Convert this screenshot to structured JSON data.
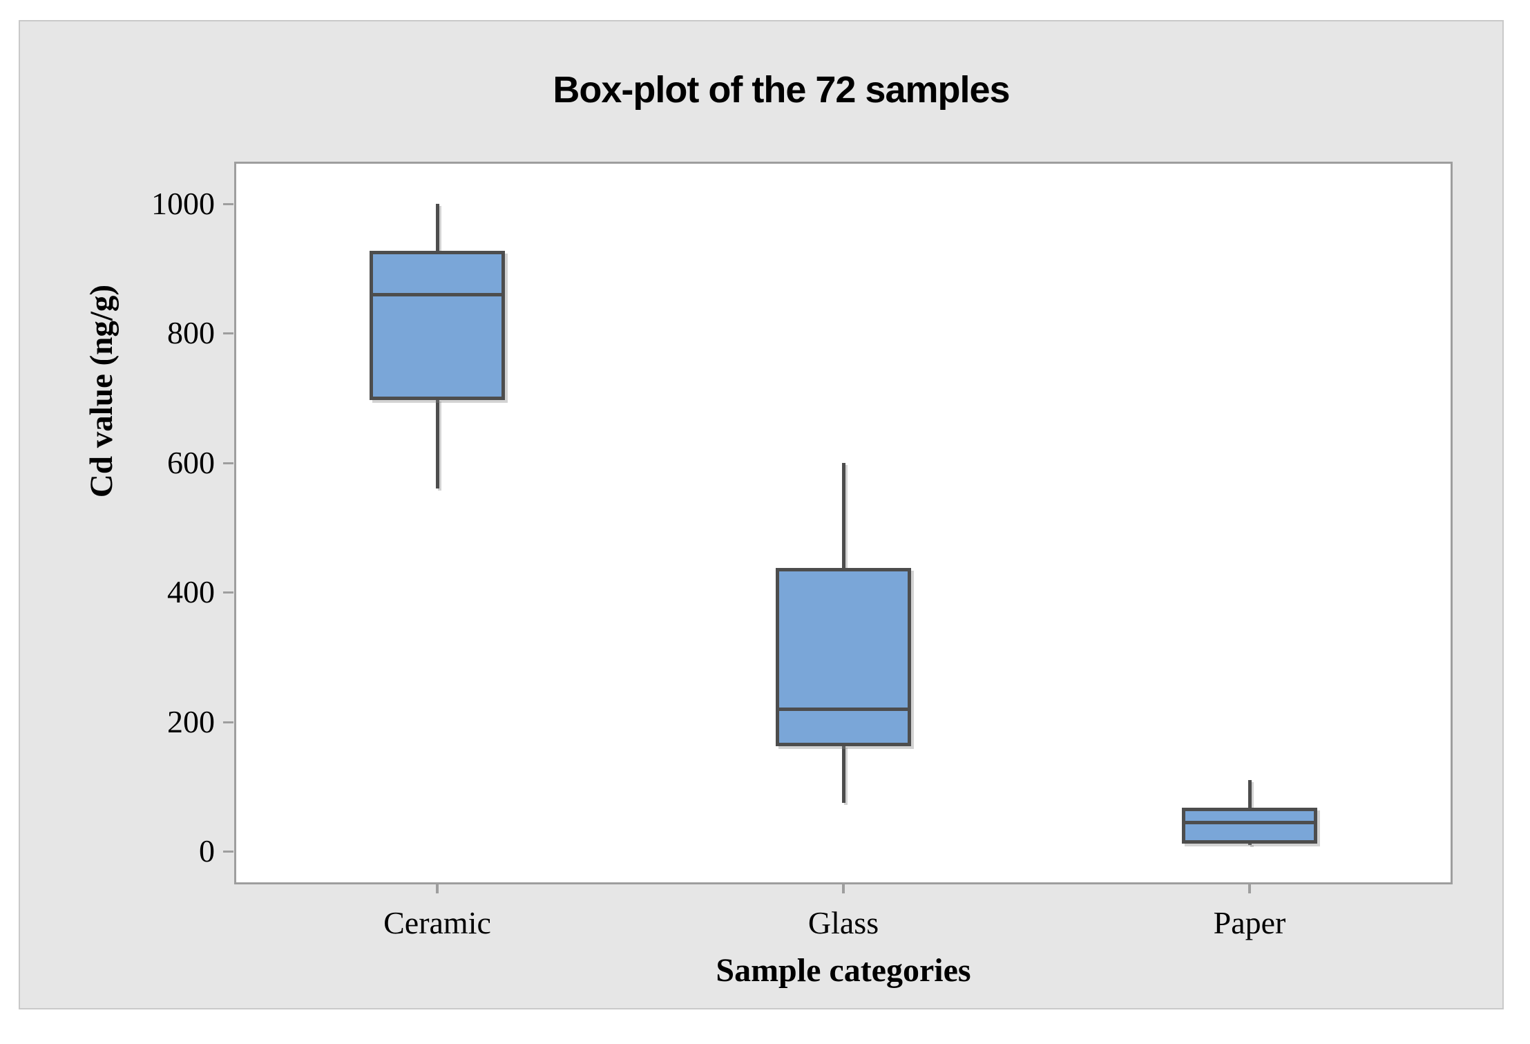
{
  "chart_data": {
    "type": "boxplot",
    "title": "Box-plot of the 72 samples",
    "xlabel": "Sample categories",
    "ylabel": "Cd value (ng/g)",
    "categories": [
      "Ceramic",
      "Glass",
      "Paper"
    ],
    "y_ticks": [
      0,
      200,
      400,
      600,
      800,
      1000
    ],
    "ylim": [
      0,
      1065
    ],
    "grid": "off",
    "legend": "none",
    "series": [
      {
        "name": "Ceramic",
        "min": 560,
        "q1": 700,
        "median": 860,
        "q3": 925,
        "max": 1000
      },
      {
        "name": "Glass",
        "min": 75,
        "q1": 165,
        "median": 220,
        "q3": 435,
        "max": 600
      },
      {
        "name": "Paper",
        "min": 10,
        "q1": 15,
        "median": 45,
        "q3": 65,
        "max": 110
      }
    ],
    "colors": {
      "box_fill": "#7aa6d8",
      "box_stroke": "#4d4d4d",
      "figure_bg": "#e6e6e6",
      "figure_border": "#c9c9c9",
      "plot_bg": "#ffffff",
      "plot_border": "#9e9e9e",
      "tick": "#9e9e9e",
      "text": "#000000"
    }
  }
}
